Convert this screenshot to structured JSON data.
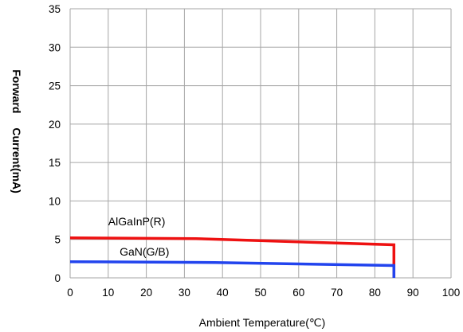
{
  "chart_data": {
    "type": "line",
    "title": "",
    "xlabel": "Ambient  Temperature(℃)",
    "ylabel_parts": [
      "Forward",
      "Current(mA)"
    ],
    "xlim": [
      0,
      100
    ],
    "ylim": [
      0,
      35
    ],
    "x_ticks": [
      0,
      10,
      20,
      30,
      40,
      50,
      60,
      70,
      80,
      90,
      100
    ],
    "y_ticks": [
      0,
      5,
      10,
      15,
      20,
      25,
      30,
      35
    ],
    "grid": true,
    "series": [
      {
        "name": "AlGaInP(R)",
        "color": "#ee1111",
        "points": [
          [
            0,
            5.2
          ],
          [
            33,
            5.1
          ],
          [
            85,
            4.3
          ],
          [
            85,
            0
          ]
        ]
      },
      {
        "name": "GaN(G/B)",
        "color": "#2244ee",
        "points": [
          [
            0,
            2.1
          ],
          [
            38,
            2.0
          ],
          [
            85,
            1.6
          ],
          [
            85,
            0
          ]
        ]
      }
    ],
    "annotations": [
      {
        "text": "AlGaInP(R)",
        "x": 10,
        "y": 6.5
      },
      {
        "text": "GaN(G/B)",
        "x": 13,
        "y": 2.6
      }
    ]
  }
}
